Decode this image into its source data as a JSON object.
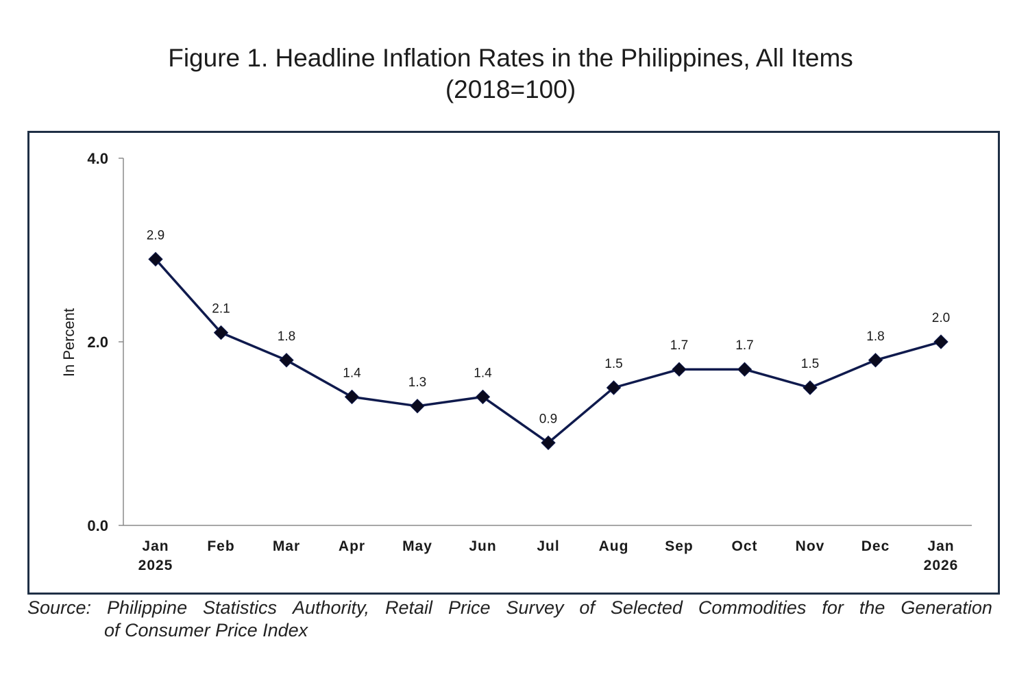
{
  "chart_data": {
    "type": "line",
    "title": "Figure 1. Headline Inflation Rates in the Philippines, All Items",
    "subtitle": "(2018=100)",
    "xlabel": "",
    "ylabel": "In Percent",
    "ylim": [
      0,
      4
    ],
    "yticks": [
      "0.0",
      "2.0",
      "4.0"
    ],
    "categories": [
      [
        "Jan",
        "2025"
      ],
      [
        "Feb"
      ],
      [
        "Mar"
      ],
      [
        "Apr"
      ],
      [
        "May"
      ],
      [
        "Jun"
      ],
      [
        "Jul"
      ],
      [
        "Aug"
      ],
      [
        "Sep"
      ],
      [
        "Oct"
      ],
      [
        "Nov"
      ],
      [
        "Dec"
      ],
      [
        "Jan",
        "2026"
      ]
    ],
    "series": [
      {
        "name": "Headline Inflation",
        "values": [
          2.9,
          2.1,
          1.8,
          1.4,
          1.3,
          1.4,
          0.9,
          1.5,
          1.7,
          1.7,
          1.5,
          1.8,
          2.0
        ],
        "labels": [
          "2.9",
          "2.1",
          "1.8",
          "1.4",
          "1.3",
          "1.4",
          "0.9",
          "1.5",
          "1.7",
          "1.7",
          "1.5",
          "1.8",
          "2.0"
        ],
        "color": "#0f1a4d",
        "marker": "diamond"
      }
    ],
    "grid": false,
    "legend": "none"
  },
  "source": {
    "line1_words": [
      "Source:",
      "Philippine",
      "Statistics",
      "Authority,",
      "Retail",
      "Price",
      "Survey",
      "of",
      "Selected",
      "Commodities",
      "for",
      "the",
      "Generation"
    ],
    "line2": "of Consumer Price Index"
  },
  "colors": {
    "frame": "#1f2f45",
    "axis": "#8a8a8a",
    "line": "#0f1a4d"
  }
}
